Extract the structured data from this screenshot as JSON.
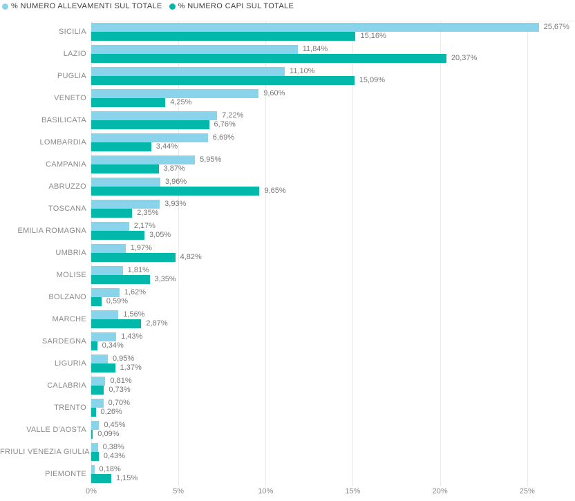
{
  "colors": {
    "background": "#ffffff",
    "grid": "#e9e9e9",
    "category_label": "#8a8a8a",
    "value_label": "#777777",
    "tick_label": "#8a8a8a",
    "legend_text": "#3c3c3c",
    "series_allevamenti": "#8AD4EB",
    "series_capi": "#01B8AA"
  },
  "legend": {
    "items": [
      {
        "label": "% NUMERO ALLEVAMENTI SUL TOTALE",
        "color": "#8AD4EB"
      },
      {
        "label": "% NUMERO CAPI SUL TOTALE",
        "color": "#01B8AA"
      }
    ]
  },
  "chart_data": {
    "type": "bar",
    "orientation": "horizontal",
    "grid": true,
    "legend_position": "top-left",
    "value_format": "italian-comma-percent",
    "categories": [
      "SICILIA",
      "LAZIO",
      "PUGLIA",
      "VENETO",
      "BASILICATA",
      "LOMBARDIA",
      "CAMPANIA",
      "ABRUZZO",
      "TOSCANA",
      "EMILIA ROMAGNA",
      "UMBRIA",
      "MOLISE",
      "BOLZANO",
      "MARCHE",
      "SARDEGNA",
      "LIGURIA",
      "CALABRIA",
      "TRENTO",
      "VALLE D'AOSTA",
      "FRIULI VENEZIA GIULIA",
      "PIEMONTE"
    ],
    "series": [
      {
        "name": "% NUMERO ALLEVAMENTI SUL TOTALE",
        "color": "#8AD4EB",
        "values": [
          25.67,
          11.84,
          11.1,
          9.6,
          7.22,
          6.69,
          5.95,
          3.96,
          3.93,
          2.17,
          1.97,
          1.81,
          1.62,
          1.56,
          1.43,
          0.95,
          0.81,
          0.7,
          0.45,
          0.38,
          0.18
        ],
        "labels": [
          "25,67%",
          "11,84%",
          "11,10%",
          "9,60%",
          "7,22%",
          "6,69%",
          "5,95%",
          "3,96%",
          "3,93%",
          "2,17%",
          "1,97%",
          "1,81%",
          "1,62%",
          "1,56%",
          "1,43%",
          "0,95%",
          "0,81%",
          "0,70%",
          "0,45%",
          "0,38%",
          "0,18%"
        ]
      },
      {
        "name": "% NUMERO CAPI SUL TOTALE",
        "color": "#01B8AA",
        "values": [
          15.16,
          20.37,
          15.09,
          4.25,
          6.76,
          3.44,
          3.87,
          9.65,
          2.35,
          3.05,
          4.82,
          3.35,
          0.59,
          2.87,
          0.34,
          1.37,
          0.73,
          0.26,
          0.09,
          0.43,
          1.15
        ],
        "labels": [
          "15,16%",
          "20,37%",
          "15,09%",
          "4,25%",
          "6,76%",
          "3,44%",
          "3,87%",
          "9,65%",
          "2,35%",
          "3,05%",
          "4,82%",
          "3,35%",
          "0,59%",
          "2,87%",
          "0,34%",
          "1,37%",
          "0,73%",
          "0,26%",
          "0,09%",
          "0,43%",
          "1,15%"
        ]
      }
    ],
    "x_axis": {
      "ticks": [
        "0%",
        "5%",
        "10%",
        "15%",
        "20%",
        "25%"
      ],
      "tick_values": [
        0,
        5,
        10,
        15,
        20,
        25
      ],
      "min": 0,
      "max": 25
    }
  }
}
